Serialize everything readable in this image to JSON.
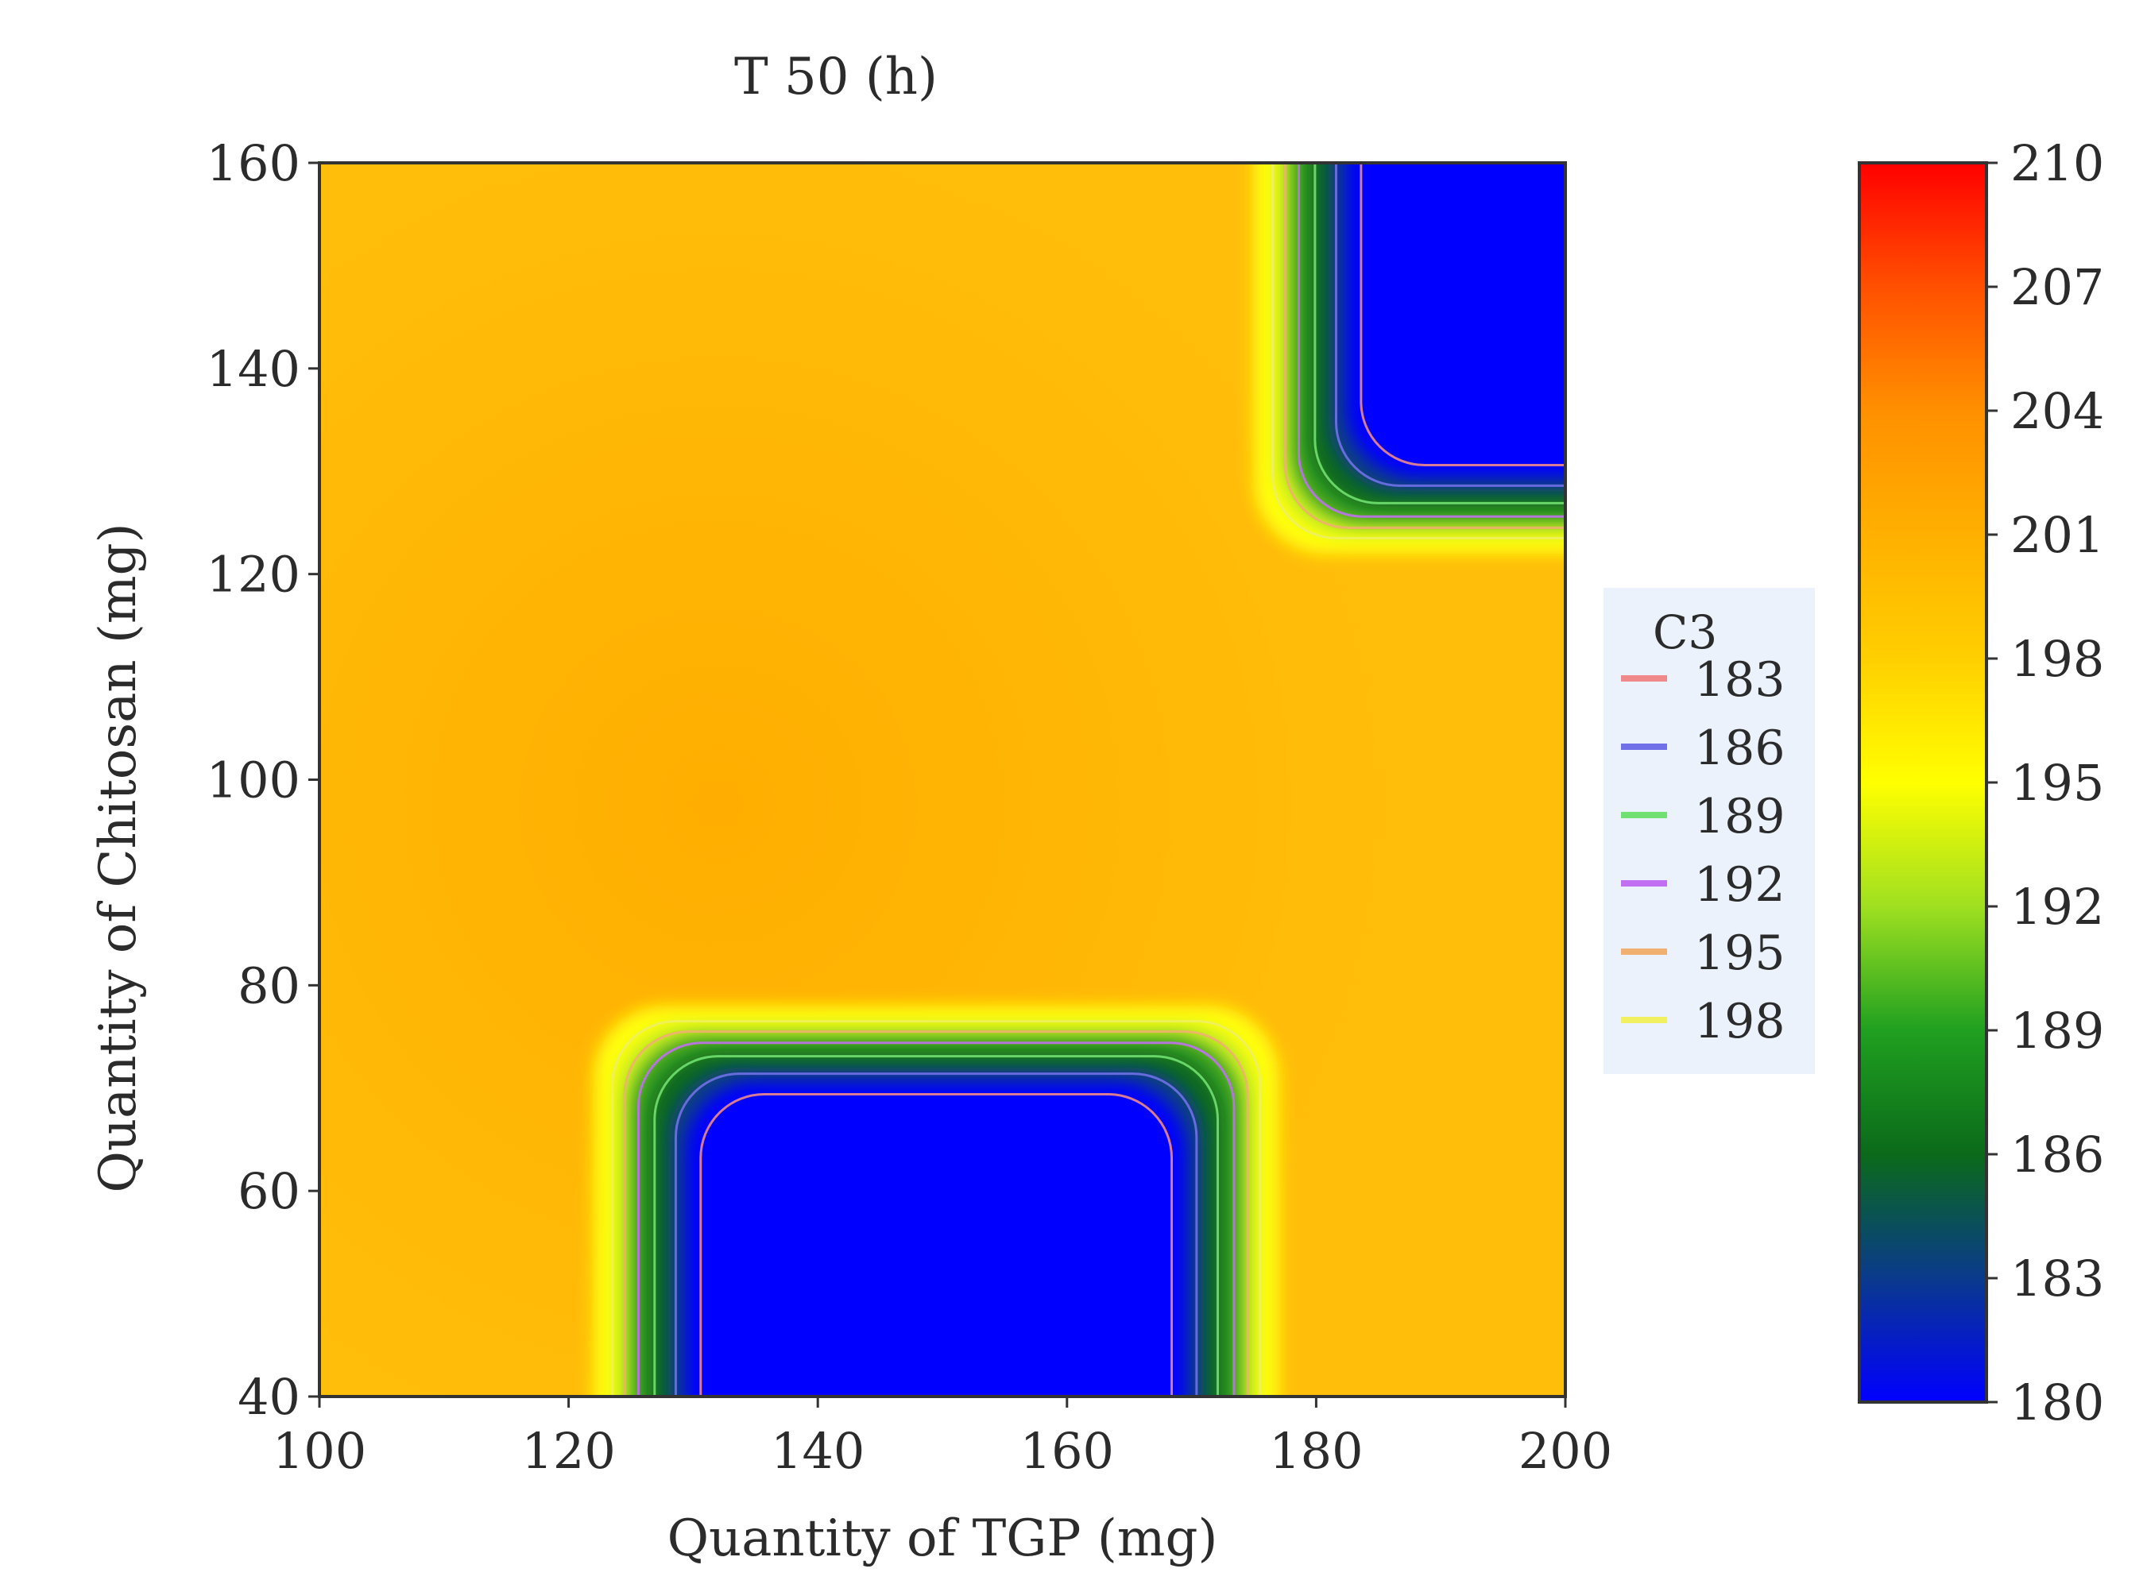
{
  "chart_data": {
    "type": "heatmap",
    "title": "T 50 (h)",
    "xlabel": "Quantity of TGP (mg)",
    "ylabel": "Quantity of Chitosan (mg)",
    "xlim": [
      100,
      200
    ],
    "ylim": [
      40,
      160
    ],
    "xticks": [
      "100",
      "120",
      "140",
      "160",
      "180",
      "200"
    ],
    "yticks": [
      "40",
      "60",
      "80",
      "100",
      "120",
      "140",
      "160"
    ],
    "grid": false,
    "colorbar": {
      "range": [
        180,
        210
      ],
      "ticks": [
        "180",
        "183",
        "186",
        "189",
        "192",
        "195",
        "198",
        "201",
        "204",
        "207",
        "210"
      ],
      "colors": [
        "#0000ff",
        "#0a3a8c",
        "#0b6a1a",
        "#20a020",
        "#9fe020",
        "#ffff00",
        "#ffcf00",
        "#ffb000",
        "#ff9000",
        "#ff5000",
        "#ff0000"
      ]
    },
    "legend": {
      "title": "C3",
      "placement": "right",
      "entries": [
        {
          "label": "183",
          "color": "#f08a8a"
        },
        {
          "label": "186",
          "color": "#7070e8"
        },
        {
          "label": "189",
          "color": "#70e070"
        },
        {
          "label": "192",
          "color": "#c070f0"
        },
        {
          "label": "195",
          "color": "#f0b070"
        },
        {
          "label": "198",
          "color": "#f0f060"
        }
      ]
    },
    "contour_levels": [
      183,
      186,
      189,
      192,
      195,
      198
    ],
    "regions": [
      {
        "description": "low region bottom",
        "x_range": [
          122,
          177
        ],
        "y_range": [
          40,
          78
        ],
        "min_value": 180
      },
      {
        "description": "low region top-right",
        "x_range": [
          175,
          200
        ],
        "y_range": [
          122,
          160
        ],
        "min_value": 180
      }
    ],
    "background_value": 201
  }
}
